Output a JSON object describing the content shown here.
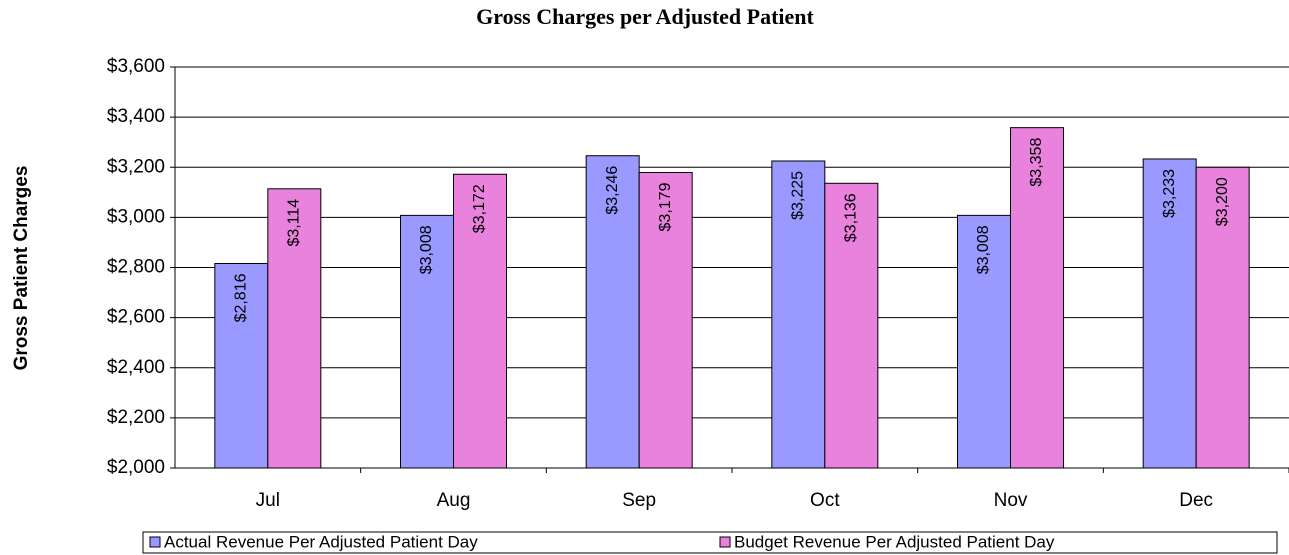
{
  "chart_data": {
    "type": "bar",
    "title": "Gross Charges per Adjusted Patient",
    "y_label": "Gross Patient Charges",
    "categories": [
      "Jul",
      "Aug",
      "Sep",
      "Oct",
      "Nov",
      "Dec"
    ],
    "series": [
      {
        "name": "Actual Revenue  Per Adjusted Patient Day",
        "color": "#9999ff",
        "values": [
          2816,
          3008,
          3246,
          3225,
          3008,
          3233
        ],
        "value_labels": [
          "$2,816",
          "$3,008",
          "$3,246",
          "$3,225",
          "$3,008",
          "$3,233"
        ]
      },
      {
        "name": "Budget Revenue Per Adjusted Patient Day",
        "color": "#e882dc",
        "values": [
          3114,
          3172,
          3179,
          3136,
          3358,
          3200
        ],
        "value_labels": [
          "$3,114",
          "$3,172",
          "$3,179",
          "$3,136",
          "$3,358",
          "$3,200"
        ]
      }
    ],
    "ylim": [
      2000,
      3600
    ],
    "yticks": [
      {
        "value": 2000,
        "label": "$2,000"
      },
      {
        "value": 2200,
        "label": "$2,200"
      },
      {
        "value": 2400,
        "label": "$2,400"
      },
      {
        "value": 2600,
        "label": "$2,600"
      },
      {
        "value": 2800,
        "label": "$2,800"
      },
      {
        "value": 3000,
        "label": "$3,000"
      },
      {
        "value": 3200,
        "label": "$3,200"
      },
      {
        "value": 3400,
        "label": "$3,400"
      },
      {
        "value": 3600,
        "label": "$3,600"
      }
    ],
    "grid": true,
    "legend": "bottom"
  }
}
